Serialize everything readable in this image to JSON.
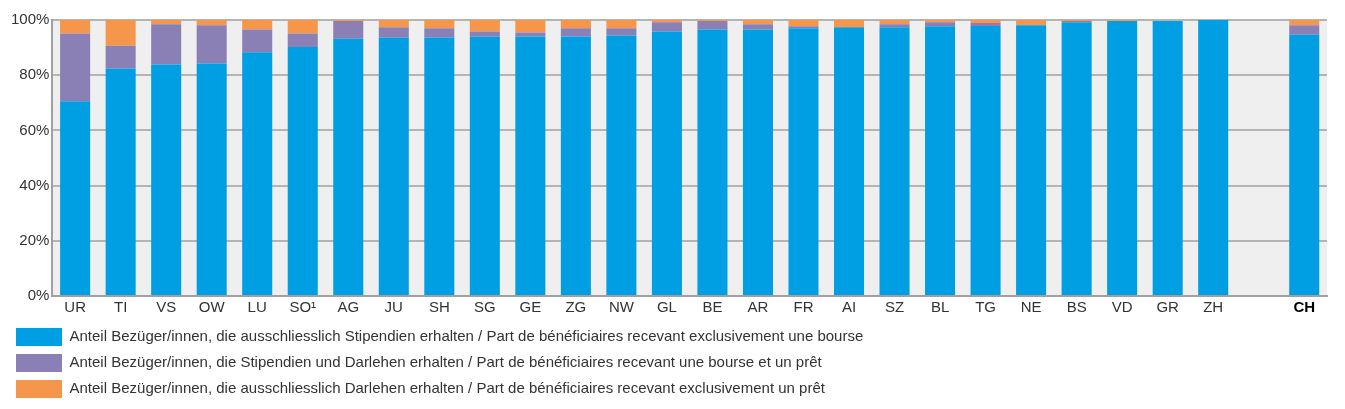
{
  "chart_data": {
    "type": "bar",
    "stacked": true,
    "categories": [
      "UR",
      "TI",
      "VS",
      "OW",
      "LU",
      "SO¹",
      "AG",
      "JU",
      "SH",
      "SG",
      "GE",
      "ZG",
      "NW",
      "GL",
      "BE",
      "AR",
      "FR",
      "AI",
      "SZ",
      "BL",
      "TG",
      "NE",
      "BS",
      "VD",
      "GR",
      "ZH",
      null,
      "CH"
    ],
    "series": [
      {
        "name": "Anteil Bezüger/innen, die ausschliesslich Stipendien erhalten / Part de bénéficiaires recevant exclusivement une bourse",
        "color": "#009fe3",
        "values": [
          70.6,
          82.4,
          83.9,
          84.2,
          88.3,
          90.2,
          93.2,
          93.6,
          93.7,
          93.9,
          94,
          94,
          94.4,
          95.8,
          96.6,
          96.6,
          97,
          97.4,
          97.4,
          97.7,
          97.8,
          98.1,
          99.2,
          99.6,
          99.6,
          100,
          null,
          94.7
        ]
      },
      {
        "name": "Anteil Bezüger/innen, die Stipendien und Darlehen erhalten / Part de bénéficiaires recevant une bourse et un prêt",
        "color": "#8b80b6",
        "values": [
          24.5,
          8.3,
          14.6,
          13.9,
          8.3,
          4.9,
          6.4,
          3.8,
          3.3,
          1.9,
          1.5,
          3,
          2.6,
          3.4,
          3,
          1.9,
          0.7,
          0,
          1.1,
          1.5,
          1.1,
          0,
          0.4,
          0,
          null,
          0,
          null,
          3.4
        ]
      },
      {
        "name": "Anteil Bezüger/innen, die ausschliesslich Darlehen erhalten / Part de bénéficiaires recevant exclusivement un prêt",
        "color": "#f5964b",
        "values": [
          4.9,
          9.3,
          1.5,
          1.9,
          3.4,
          4.9,
          0.4,
          2.6,
          3,
          4.2,
          4.5,
          3,
          3,
          0.8,
          0.4,
          1.5,
          2.3,
          2.6,
          1.5,
          0.8,
          1.1,
          1.9,
          0.4,
          0.4,
          0,
          0,
          null,
          1.9
        ]
      }
    ],
    "ylim": [
      0,
      100
    ],
    "yticks": [
      {
        "value": 0,
        "label": "0%"
      },
      {
        "value": 20,
        "label": "20%"
      },
      {
        "value": 40,
        "label": "40%"
      },
      {
        "value": 60,
        "label": "60%"
      },
      {
        "value": 80,
        "label": "80%"
      },
      {
        "value": 100,
        "label": "100%"
      }
    ],
    "grid": "y",
    "legend": "bottom"
  }
}
